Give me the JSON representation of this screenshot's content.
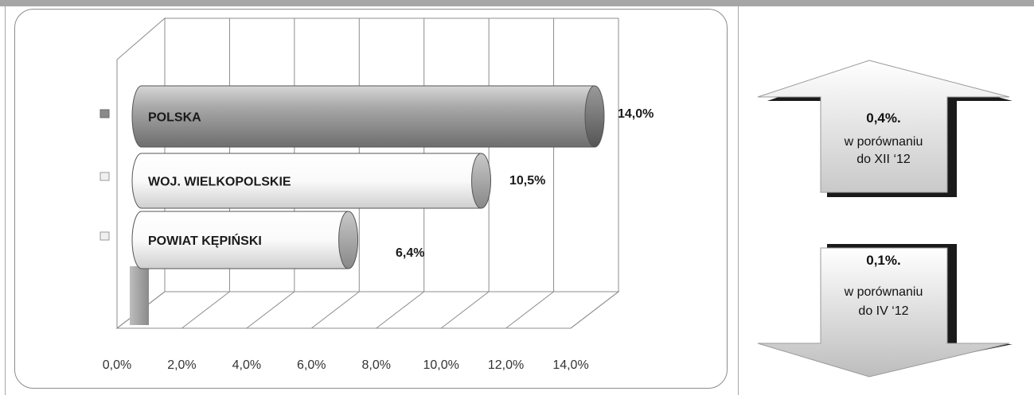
{
  "chart_data": {
    "type": "bar",
    "orientation": "horizontal",
    "categories": [
      "POLSKA",
      "WOJ. WIELKOPOLSKIE",
      "POWIAT KĘPIŃSKI"
    ],
    "values": [
      14.0,
      10.5,
      6.4
    ],
    "data_labels": [
      "14,0%",
      "10,5%",
      "6,4%"
    ],
    "xlim": [
      0,
      14
    ],
    "x_ticks": [
      "0,0%",
      "2,0%",
      "4,0%",
      "6,0%",
      "8,0%",
      "10,0%",
      "12,0%",
      "14,0%"
    ],
    "grid": true,
    "bar_colors": [
      "#8a8a8a",
      "#f2f2f2",
      "#f2f2f2"
    ]
  },
  "indicators": [
    {
      "direction": "up",
      "value": "0,4%.",
      "line1": "w porównaniu",
      "line2": "do XII ‘12"
    },
    {
      "direction": "down",
      "value": "0,1%.",
      "line1": "w porównaniu",
      "line2": "do IV ‘12"
    }
  ]
}
